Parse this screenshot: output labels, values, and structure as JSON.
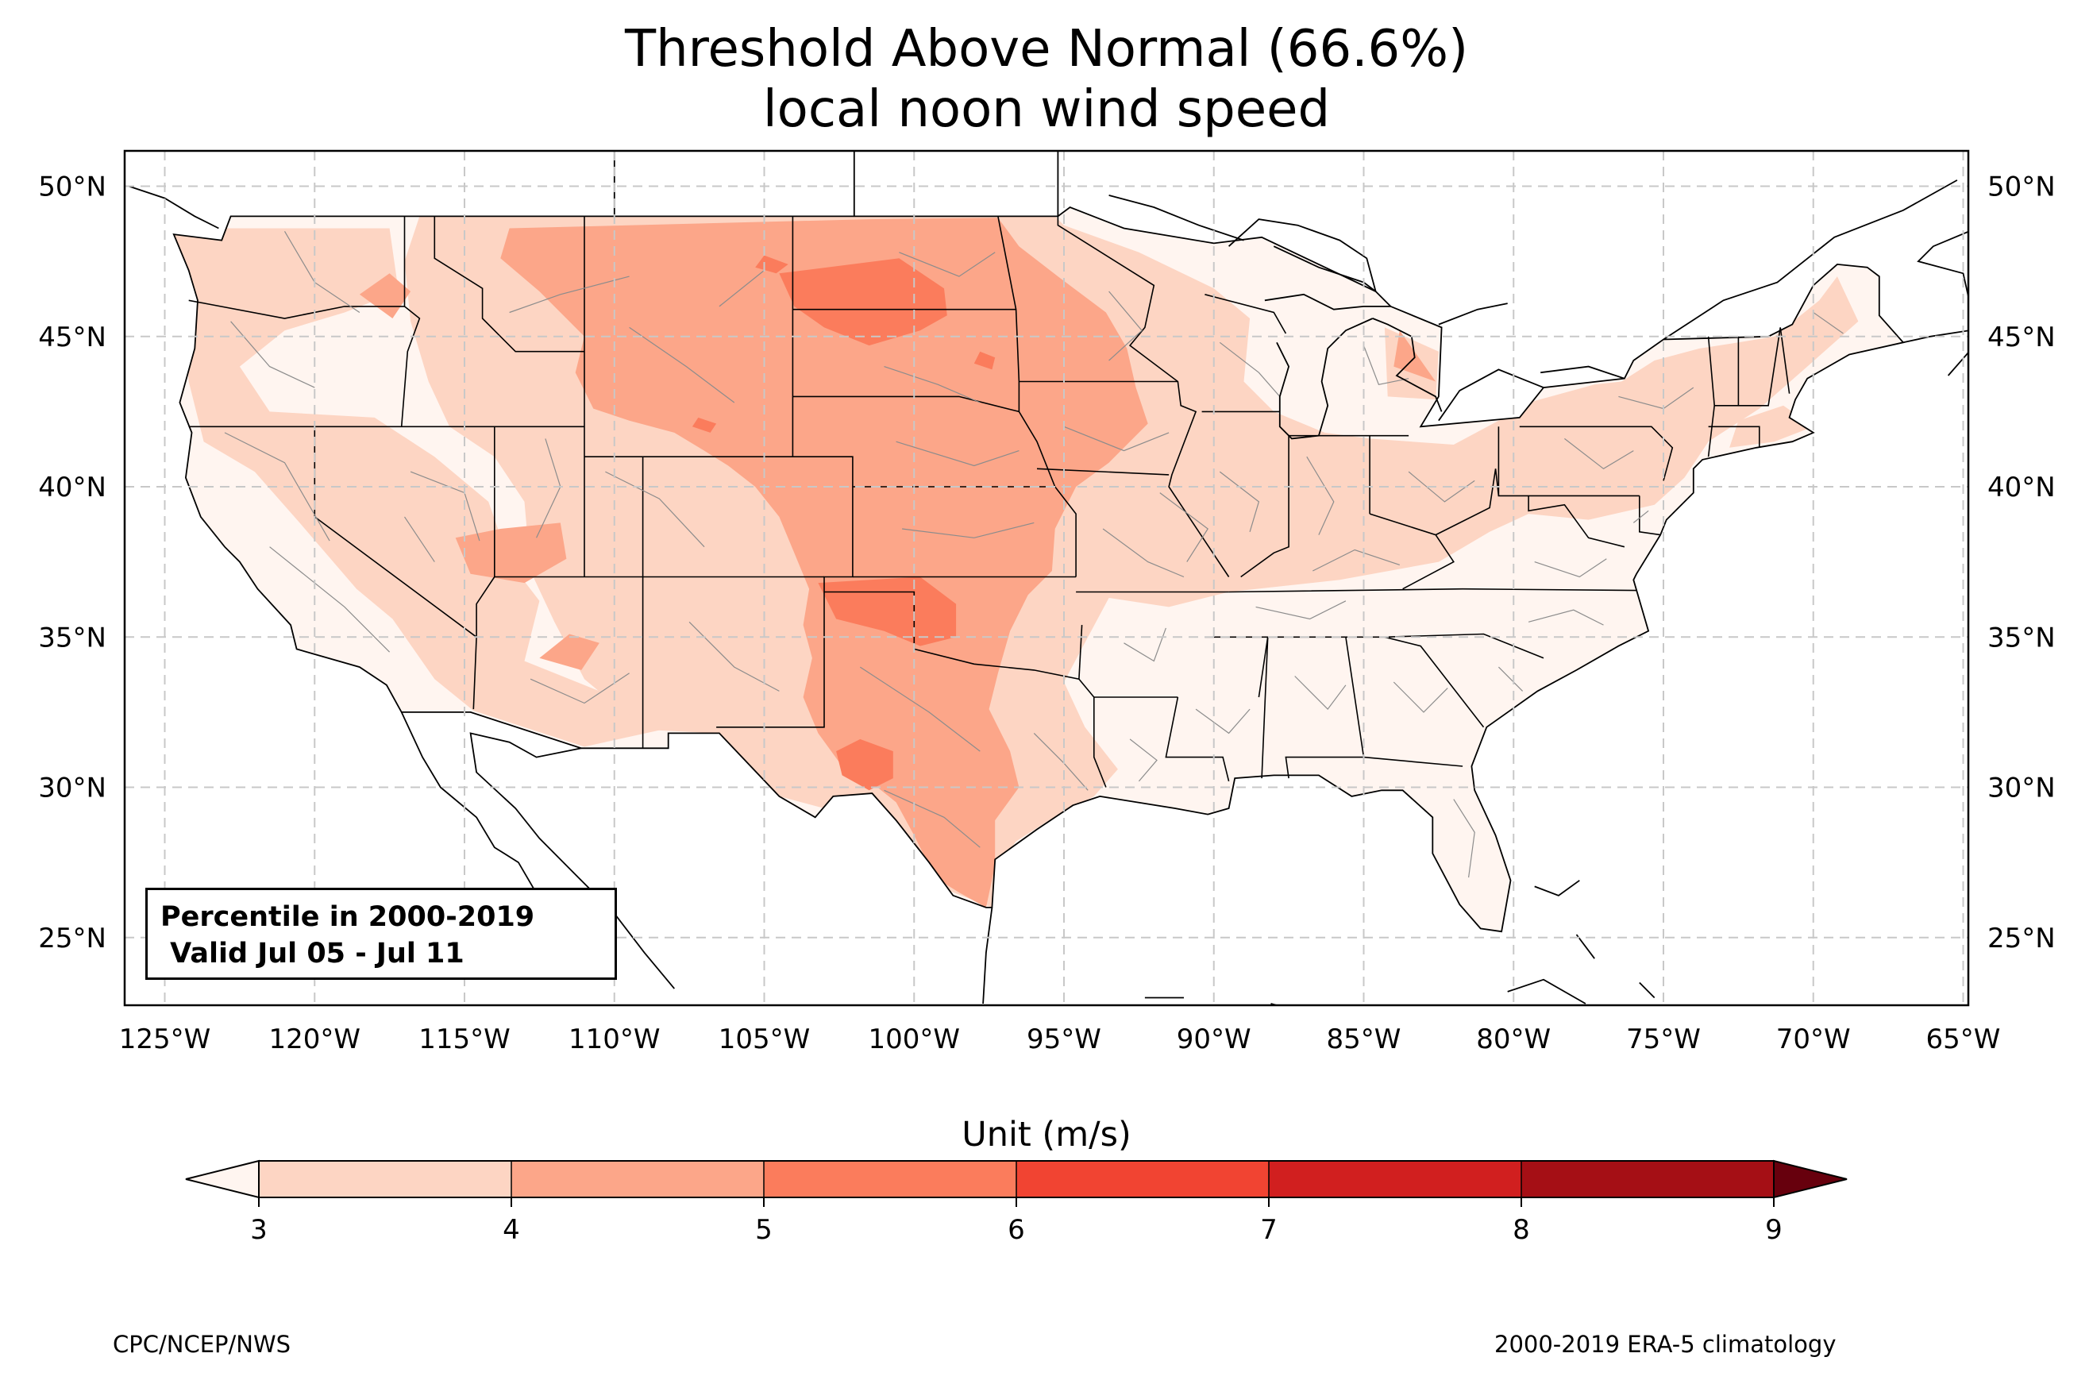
{
  "title": {
    "line1": "Threshold Above Normal (66.6%)",
    "line2": "local noon wind speed"
  },
  "info_box": {
    "line1": "Percentile in 2000-2019",
    "line2": " Valid Jul 05 - Jul 11"
  },
  "colorbar": {
    "label": "Unit (m/s)",
    "ticks": [
      "3",
      "4",
      "5",
      "6",
      "7",
      "8",
      "9"
    ],
    "bins": [
      {
        "min": 3,
        "max": 4,
        "color": "#fdd5c3"
      },
      {
        "min": 4,
        "max": 5,
        "color": "#fca689"
      },
      {
        "min": 5,
        "max": 6,
        "color": "#fb7c5c"
      },
      {
        "min": 6,
        "max": 7,
        "color": "#f14432"
      },
      {
        "min": 7,
        "max": 8,
        "color": "#d11f1f"
      },
      {
        "min": 8,
        "max": 9,
        "color": "#a50f15"
      }
    ],
    "under_color": "#fff5f0",
    "over_color": "#67000d"
  },
  "map": {
    "lon_labels": [
      "125°W",
      "120°W",
      "115°W",
      "110°W",
      "105°W",
      "100°W",
      "95°W",
      "90°W",
      "85°W",
      "80°W",
      "75°W",
      "70°W",
      "65°W"
    ],
    "lat_labels": [
      "50°N",
      "45°N",
      "40°N",
      "35°N",
      "30°N",
      "25°N"
    ],
    "gridlines": true,
    "projection": "PlateCarree",
    "lon_range": [
      -126.2,
      -64.8
    ],
    "lat_range": [
      22.8,
      51.2
    ]
  },
  "footer": {
    "left": "CPC/NCEP/NWS",
    "right": "2000-2019 ERA-5 climatology"
  }
}
